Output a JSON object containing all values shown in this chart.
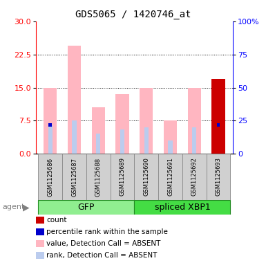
{
  "title": "GDS5065 / 1420746_at",
  "samples": [
    "GSM1125686",
    "GSM1125687",
    "GSM1125688",
    "GSM1125689",
    "GSM1125690",
    "GSM1125691",
    "GSM1125692",
    "GSM1125693"
  ],
  "value_absent": [
    15.0,
    24.5,
    10.5,
    13.5,
    15.0,
    7.5,
    15.0,
    null
  ],
  "rank_absent": [
    6.5,
    7.5,
    4.5,
    5.5,
    6.0,
    3.0,
    6.0,
    null
  ],
  "count": [
    null,
    null,
    null,
    null,
    null,
    null,
    null,
    17.0
  ],
  "percentile_rank": [
    6.5,
    null,
    null,
    null,
    null,
    null,
    null,
    6.5
  ],
  "ylim": [
    0,
    30
  ],
  "yticks": [
    0,
    7.5,
    15,
    22.5,
    30
  ],
  "yticks_right_labels": [
    "0",
    "25",
    "50",
    "75",
    "100%"
  ],
  "pink_color": "#FFB6C1",
  "lavender_color": "#BBCCEE",
  "red_color": "#CC0000",
  "blue_color": "#0000CC",
  "gfp_color": "#90EE90",
  "xbp1_color": "#44DD44",
  "legend_items": [
    {
      "color": "#CC0000",
      "label": "count"
    },
    {
      "color": "#0000CC",
      "label": "percentile rank within the sample"
    },
    {
      "color": "#FFB6C1",
      "label": "value, Detection Call = ABSENT"
    },
    {
      "color": "#BBCCEE",
      "label": "rank, Detection Call = ABSENT"
    }
  ]
}
